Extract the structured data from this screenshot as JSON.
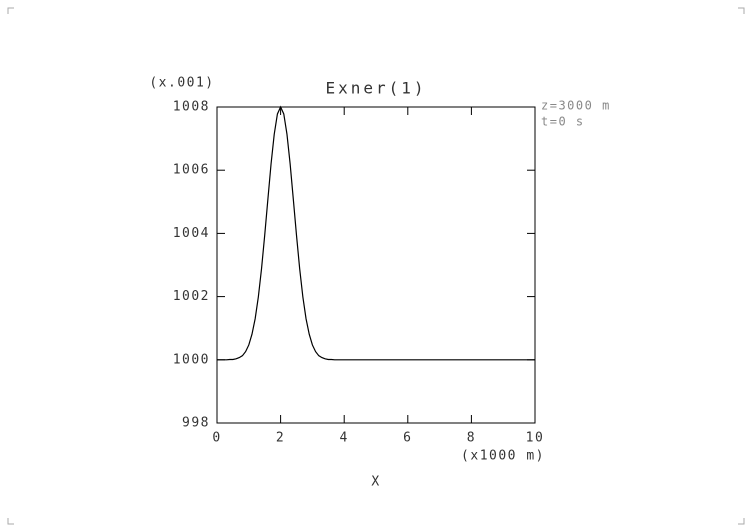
{
  "chart_data": {
    "type": "line",
    "title": "Exner(1)",
    "y_scale_label": "(x.001)",
    "x_scale_label": "(x1000 m)",
    "x_label": "X",
    "annotations": [
      "z=3000 m",
      "t=0 s"
    ],
    "x": [
      0,
      0.1,
      0.2,
      0.3,
      0.4,
      0.5,
      0.6,
      0.7,
      0.8,
      0.9,
      1.0,
      1.1,
      1.2,
      1.3,
      1.4,
      1.5,
      1.6,
      1.7,
      1.8,
      1.9,
      2.0,
      2.1,
      2.2,
      2.3,
      2.4,
      2.5,
      2.6,
      2.7,
      2.8,
      2.9,
      3.0,
      3.1,
      3.2,
      3.3,
      3.4,
      3.5,
      3.6,
      3.7,
      3.8,
      3.9,
      4.0,
      10
    ],
    "series": [
      {
        "color": "#000000",
        "values": [
          1000.0,
          1000.0,
          1000.0,
          1000.0,
          1000.01,
          1000.01,
          1000.03,
          1000.07,
          1000.13,
          1000.26,
          1000.47,
          1000.81,
          1001.3,
          1001.99,
          1002.88,
          1003.94,
          1005.08,
          1006.2,
          1007.14,
          1007.78,
          1008.0,
          1007.78,
          1007.14,
          1006.2,
          1005.08,
          1003.94,
          1002.88,
          1001.99,
          1001.3,
          1000.81,
          1000.47,
          1000.26,
          1000.13,
          1000.07,
          1000.03,
          1000.01,
          1000.01,
          1000.0,
          1000.0,
          1000.0,
          1000.0,
          1000.0
        ]
      }
    ],
    "xlim": [
      0,
      10
    ],
    "xticks": [
      0,
      2,
      4,
      6,
      8,
      10
    ],
    "ylim": [
      998,
      1008
    ],
    "yticks": [
      998,
      1000,
      1002,
      1004,
      1006,
      1008
    ]
  }
}
